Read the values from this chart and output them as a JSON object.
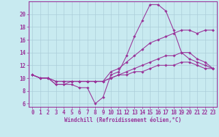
{
  "background_color": "#c8eaf0",
  "grid_color": "#aaccd8",
  "line_color": "#993399",
  "marker": "D",
  "marker_size": 2.2,
  "xlabel": "Windchill (Refroidissement éolien,°C)",
  "xlabel_fontsize": 5.5,
  "tick_fontsize": 5.5,
  "xlim": [
    -0.5,
    23.5
  ],
  "ylim": [
    5.5,
    22.0
  ],
  "yticks": [
    6,
    8,
    10,
    12,
    14,
    16,
    18,
    20
  ],
  "xticks": [
    0,
    1,
    2,
    3,
    4,
    5,
    6,
    7,
    8,
    9,
    10,
    11,
    12,
    13,
    14,
    15,
    16,
    17,
    18,
    19,
    20,
    21,
    22,
    23
  ],
  "lines": [
    {
      "x": [
        0,
        1,
        2,
        3,
        4,
        5,
        6,
        7,
        8,
        9,
        10,
        11,
        12,
        13,
        14,
        15,
        16,
        17,
        18,
        19,
        20,
        21,
        22,
        23
      ],
      "y": [
        10.5,
        10.0,
        10.0,
        9.0,
        9.0,
        9.0,
        8.5,
        8.5,
        6.0,
        7.0,
        10.5,
        11.0,
        13.5,
        16.5,
        19.0,
        21.5,
        21.5,
        20.5,
        17.5,
        14.0,
        13.0,
        12.5,
        12.0,
        11.5
      ]
    },
    {
      "x": [
        0,
        1,
        2,
        3,
        4,
        5,
        6,
        7,
        8,
        9,
        10,
        11,
        12,
        13,
        14,
        15,
        16,
        17,
        18,
        19,
        20,
        21,
        22,
        23
      ],
      "y": [
        10.5,
        10.0,
        10.0,
        9.0,
        9.0,
        9.5,
        9.5,
        9.5,
        9.5,
        9.5,
        11.0,
        11.5,
        12.5,
        13.5,
        14.5,
        15.5,
        16.0,
        16.5,
        17.0,
        17.5,
        17.5,
        17.0,
        17.5,
        17.5
      ]
    },
    {
      "x": [
        0,
        1,
        2,
        3,
        4,
        5,
        6,
        7,
        8,
        9,
        10,
        11,
        12,
        13,
        14,
        15,
        16,
        17,
        18,
        19,
        20,
        21,
        22,
        23
      ],
      "y": [
        10.5,
        10.0,
        10.0,
        9.5,
        9.5,
        9.5,
        9.5,
        9.5,
        9.5,
        9.5,
        10.0,
        10.5,
        11.0,
        11.5,
        12.0,
        12.5,
        13.0,
        13.5,
        13.5,
        14.0,
        14.0,
        13.0,
        12.5,
        11.5
      ]
    },
    {
      "x": [
        0,
        1,
        2,
        3,
        4,
        5,
        6,
        7,
        8,
        9,
        10,
        11,
        12,
        13,
        14,
        15,
        16,
        17,
        18,
        19,
        20,
        21,
        22,
        23
      ],
      "y": [
        10.5,
        10.0,
        10.0,
        9.5,
        9.5,
        9.5,
        9.5,
        9.5,
        9.5,
        9.5,
        10.0,
        10.5,
        10.5,
        11.0,
        11.0,
        11.5,
        12.0,
        12.0,
        12.0,
        12.5,
        12.5,
        12.0,
        11.5,
        11.5
      ]
    }
  ]
}
